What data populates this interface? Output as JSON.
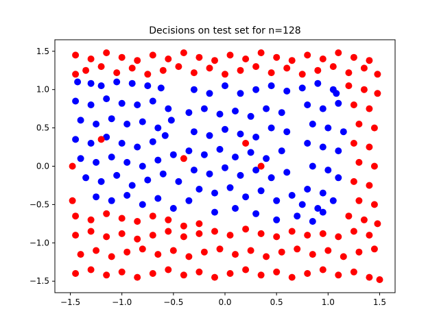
{
  "chart_data": {
    "type": "scatter",
    "title": "Decisions on test set for n=128",
    "xlabel": "",
    "ylabel": "",
    "xlim": [
      -1.65,
      1.65
    ],
    "ylim": [
      -1.65,
      1.65
    ],
    "xticks": [
      -1.5,
      -1.0,
      -0.5,
      0.0,
      0.5,
      1.0,
      1.5
    ],
    "yticks": [
      -1.5,
      -1.0,
      -0.5,
      0.0,
      0.5,
      1.0,
      1.5
    ],
    "xtick_labels": [
      "−1.5",
      "−1.0",
      "−0.5",
      "0.0",
      "0.5",
      "1.0",
      "1.5"
    ],
    "ytick_labels": [
      "−1.5",
      "−1.0",
      "−0.5",
      "0.0",
      "0.5",
      "1.0",
      "1.5"
    ],
    "grid": false,
    "colors": {
      "blue": "#0000ff",
      "red": "#ff0000"
    },
    "series": [
      {
        "color": "blue",
        "points": [
          [
            -1.43,
            1.1
          ],
          [
            -1.3,
            1.08
          ],
          [
            -1.2,
            1.05
          ],
          [
            -1.05,
            1.1
          ],
          [
            -0.9,
            1.08
          ],
          [
            -0.75,
            1.05
          ],
          [
            -0.62,
            1.02
          ],
          [
            -1.45,
            0.85
          ],
          [
            -1.3,
            0.8
          ],
          [
            -1.15,
            0.88
          ],
          [
            -1.0,
            0.82
          ],
          [
            -0.85,
            0.8
          ],
          [
            -0.7,
            0.85
          ],
          [
            -0.55,
            0.75
          ],
          [
            -1.4,
            0.6
          ],
          [
            -1.25,
            0.55
          ],
          [
            -1.1,
            0.62
          ],
          [
            -0.95,
            0.55
          ],
          [
            -0.8,
            0.58
          ],
          [
            -0.65,
            0.5
          ],
          [
            -0.52,
            0.6
          ],
          [
            -1.45,
            0.35
          ],
          [
            -1.3,
            0.3
          ],
          [
            -1.15,
            0.38
          ],
          [
            -1.0,
            0.3
          ],
          [
            -0.85,
            0.25
          ],
          [
            -0.7,
            0.32
          ],
          [
            -0.58,
            0.4
          ],
          [
            -1.4,
            0.1
          ],
          [
            -1.25,
            0.05
          ],
          [
            -1.1,
            0.12
          ],
          [
            -0.95,
            0.05
          ],
          [
            -0.8,
            0.0
          ],
          [
            -0.65,
            0.08
          ],
          [
            -0.5,
            0.15
          ],
          [
            -1.35,
            -0.15
          ],
          [
            -1.2,
            -0.2
          ],
          [
            -1.05,
            -0.12
          ],
          [
            -0.9,
            -0.25
          ],
          [
            -0.75,
            -0.18
          ],
          [
            -0.6,
            -0.1
          ],
          [
            -0.45,
            -0.2
          ],
          [
            -1.25,
            -0.4
          ],
          [
            -1.1,
            -0.45
          ],
          [
            -0.95,
            -0.38
          ],
          [
            -0.8,
            -0.5
          ],
          [
            -0.65,
            -0.42
          ],
          [
            -0.5,
            -0.55
          ],
          [
            -0.35,
            -0.45
          ],
          [
            -0.3,
            1.0
          ],
          [
            -0.15,
            0.95
          ],
          [
            0.0,
            1.05
          ],
          [
            0.15,
            0.95
          ],
          [
            0.3,
            1.0
          ],
          [
            0.45,
            1.05
          ],
          [
            0.6,
            0.98
          ],
          [
            -0.35,
            0.7
          ],
          [
            -0.2,
            0.75
          ],
          [
            -0.05,
            0.68
          ],
          [
            0.1,
            0.72
          ],
          [
            0.25,
            0.65
          ],
          [
            0.4,
            0.75
          ],
          [
            0.55,
            0.7
          ],
          [
            -0.3,
            0.45
          ],
          [
            -0.15,
            0.4
          ],
          [
            0.0,
            0.48
          ],
          [
            0.15,
            0.42
          ],
          [
            0.3,
            0.38
          ],
          [
            0.45,
            0.5
          ],
          [
            0.6,
            0.45
          ],
          [
            -0.35,
            0.2
          ],
          [
            -0.2,
            0.15
          ],
          [
            -0.05,
            0.22
          ],
          [
            0.1,
            0.12
          ],
          [
            0.25,
            0.18
          ],
          [
            0.4,
            0.1
          ],
          [
            0.55,
            0.2
          ],
          [
            -0.3,
            -0.05
          ],
          [
            -0.15,
            -0.1
          ],
          [
            0.0,
            -0.02
          ],
          [
            0.15,
            -0.12
          ],
          [
            0.3,
            -0.05
          ],
          [
            0.45,
            -0.15
          ],
          [
            0.6,
            -0.08
          ],
          [
            -0.25,
            -0.3
          ],
          [
            -0.1,
            -0.35
          ],
          [
            0.05,
            -0.28
          ],
          [
            0.2,
            -0.4
          ],
          [
            0.35,
            -0.32
          ],
          [
            0.5,
            -0.45
          ],
          [
            0.65,
            -0.38
          ],
          [
            -0.1,
            -0.6
          ],
          [
            0.1,
            -0.55
          ],
          [
            0.3,
            -0.62
          ],
          [
            0.5,
            -0.7
          ],
          [
            0.7,
            -0.65
          ],
          [
            0.85,
            -0.72
          ],
          [
            0.95,
            -0.6
          ],
          [
            0.75,
            1.02
          ],
          [
            0.9,
            1.08
          ],
          [
            1.05,
            1.0
          ],
          [
            0.8,
            0.8
          ],
          [
            0.95,
            0.75
          ],
          [
            1.1,
            0.82
          ],
          [
            0.85,
            0.55
          ],
          [
            1.0,
            0.5
          ],
          [
            1.15,
            0.45
          ],
          [
            0.8,
            0.3
          ],
          [
            0.95,
            0.25
          ],
          [
            1.1,
            0.2
          ],
          [
            0.85,
            0.0
          ],
          [
            1.0,
            -0.05
          ],
          [
            1.1,
            -0.15
          ],
          [
            0.8,
            -0.3
          ],
          [
            0.95,
            -0.35
          ],
          [
            1.05,
            -0.45
          ],
          [
            0.75,
            -0.5
          ],
          [
            0.9,
            -0.55
          ],
          [
            1.08,
            0.95
          ]
        ]
      },
      {
        "color": "red",
        "points": [
          [
            -1.45,
            1.45
          ],
          [
            -1.3,
            1.4
          ],
          [
            -1.15,
            1.48
          ],
          [
            -1.0,
            1.42
          ],
          [
            -0.85,
            1.38
          ],
          [
            -0.7,
            1.45
          ],
          [
            -0.55,
            1.4
          ],
          [
            -0.4,
            1.48
          ],
          [
            -0.25,
            1.42
          ],
          [
            -0.1,
            1.38
          ],
          [
            0.05,
            1.45
          ],
          [
            0.2,
            1.4
          ],
          [
            0.35,
            1.48
          ],
          [
            0.5,
            1.42
          ],
          [
            0.65,
            1.38
          ],
          [
            0.8,
            1.45
          ],
          [
            0.95,
            1.4
          ],
          [
            1.1,
            1.48
          ],
          [
            1.25,
            1.42
          ],
          [
            1.4,
            1.38
          ],
          [
            -1.35,
            1.25
          ],
          [
            -1.2,
            1.3
          ],
          [
            -1.05,
            1.22
          ],
          [
            -0.9,
            1.28
          ],
          [
            -0.75,
            1.2
          ],
          [
            -0.6,
            1.25
          ],
          [
            -0.45,
            1.3
          ],
          [
            -0.3,
            1.22
          ],
          [
            -0.15,
            1.28
          ],
          [
            0.0,
            1.2
          ],
          [
            0.15,
            1.25
          ],
          [
            0.3,
            1.3
          ],
          [
            0.45,
            1.22
          ],
          [
            0.6,
            1.28
          ],
          [
            0.75,
            1.2
          ],
          [
            0.9,
            1.25
          ],
          [
            1.05,
            1.3
          ],
          [
            1.2,
            1.22
          ],
          [
            1.35,
            1.28
          ],
          [
            1.48,
            1.2
          ],
          [
            1.2,
            1.05
          ],
          [
            1.35,
            1.0
          ],
          [
            1.48,
            0.95
          ],
          [
            1.25,
            0.8
          ],
          [
            1.4,
            0.75
          ],
          [
            1.3,
            0.55
          ],
          [
            1.45,
            0.5
          ],
          [
            1.25,
            0.3
          ],
          [
            1.4,
            0.25
          ],
          [
            1.3,
            0.05
          ],
          [
            1.45,
            0.0
          ],
          [
            1.25,
            -0.2
          ],
          [
            1.4,
            -0.25
          ],
          [
            1.3,
            -0.45
          ],
          [
            1.45,
            -0.5
          ],
          [
            1.2,
            -0.65
          ],
          [
            1.35,
            -0.7
          ],
          [
            1.48,
            -0.75
          ],
          [
            -1.45,
            -0.65
          ],
          [
            -1.3,
            -0.7
          ],
          [
            -1.15,
            -0.62
          ],
          [
            -1.0,
            -0.68
          ],
          [
            -0.85,
            -0.72
          ],
          [
            -0.7,
            -0.65
          ],
          [
            -0.55,
            -0.7
          ],
          [
            -0.4,
            -0.78
          ],
          [
            -0.25,
            -0.75
          ],
          [
            -1.45,
            -0.9
          ],
          [
            -1.3,
            -0.85
          ],
          [
            -1.15,
            -0.92
          ],
          [
            -1.0,
            -0.88
          ],
          [
            -0.85,
            -0.95
          ],
          [
            -0.7,
            -0.9
          ],
          [
            -0.55,
            -0.85
          ],
          [
            -0.4,
            -0.92
          ],
          [
            -0.25,
            -0.88
          ],
          [
            -0.1,
            -0.85
          ],
          [
            0.05,
            -0.9
          ],
          [
            0.2,
            -0.82
          ],
          [
            0.35,
            -0.88
          ],
          [
            0.5,
            -0.92
          ],
          [
            0.65,
            -0.85
          ],
          [
            0.8,
            -0.9
          ],
          [
            0.95,
            -0.88
          ],
          [
            1.1,
            -0.92
          ],
          [
            1.25,
            -0.85
          ],
          [
            1.4,
            -0.9
          ],
          [
            -1.4,
            -1.15
          ],
          [
            -1.25,
            -1.1
          ],
          [
            -1.1,
            -1.18
          ],
          [
            -0.95,
            -1.12
          ],
          [
            -0.8,
            -1.08
          ],
          [
            -0.65,
            -1.15
          ],
          [
            -0.5,
            -1.1
          ],
          [
            -0.35,
            -1.18
          ],
          [
            -0.2,
            -1.12
          ],
          [
            -0.05,
            -1.08
          ],
          [
            0.1,
            -1.15
          ],
          [
            0.25,
            -1.1
          ],
          [
            0.4,
            -1.18
          ],
          [
            0.55,
            -1.12
          ],
          [
            0.7,
            -1.08
          ],
          [
            0.85,
            -1.15
          ],
          [
            1.0,
            -1.1
          ],
          [
            1.15,
            -1.18
          ],
          [
            1.3,
            -1.12
          ],
          [
            1.45,
            -1.08
          ],
          [
            -1.45,
            -1.4
          ],
          [
            -1.3,
            -1.35
          ],
          [
            -1.15,
            -1.42
          ],
          [
            -1.0,
            -1.38
          ],
          [
            -0.85,
            -1.45
          ],
          [
            -0.7,
            -1.4
          ],
          [
            -0.55,
            -1.35
          ],
          [
            -0.4,
            -1.42
          ],
          [
            -0.25,
            -1.38
          ],
          [
            -0.1,
            -1.45
          ],
          [
            0.05,
            -1.4
          ],
          [
            0.2,
            -1.35
          ],
          [
            0.35,
            -1.42
          ],
          [
            0.5,
            -1.38
          ],
          [
            0.65,
            -1.45
          ],
          [
            0.8,
            -1.4
          ],
          [
            0.95,
            -1.35
          ],
          [
            1.1,
            -1.42
          ],
          [
            1.25,
            -1.38
          ],
          [
            1.4,
            -1.45
          ],
          [
            1.5,
            -1.48
          ],
          [
            -1.48,
            -0.45
          ],
          [
            -1.48,
            0.0
          ],
          [
            -1.45,
            1.2
          ],
          [
            -1.2,
            0.35
          ],
          [
            -0.4,
            0.1
          ],
          [
            0.2,
            0.3
          ],
          [
            0.35,
            0.0
          ]
        ]
      }
    ]
  }
}
